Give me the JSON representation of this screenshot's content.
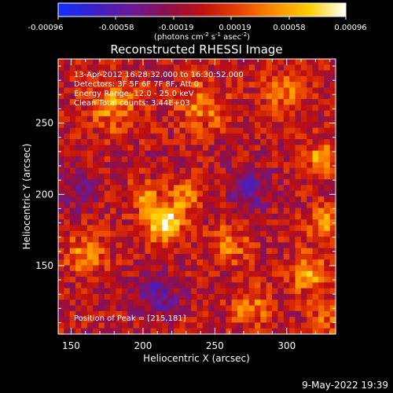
{
  "colorbar": {
    "ticks": [
      "-0.00096",
      "-0.00058",
      "-0.00019",
      "0.00019",
      "0.00058",
      "0.00096"
    ],
    "unit_prefix": "(photons cm",
    "unit_exp1": "-2",
    "unit_mid": " s",
    "unit_exp2": "-1",
    "unit_mid2": " asec",
    "unit_exp3": "-2",
    "unit_suffix": ")",
    "stops": [
      "#1030ff",
      "#3a20c8",
      "#6a1a9a",
      "#8a1050",
      "#c01010",
      "#e84000",
      "#ff8c00",
      "#ffd000",
      "#ffffff"
    ]
  },
  "chart_data": {
    "type": "heatmap",
    "title": "Reconstructed RHESSI Image",
    "xlabel": "Heliocentric X (arcsec)",
    "ylabel": "Heliocentric Y (arcsec)",
    "xlim": [
      141,
      334
    ],
    "ylim": [
      102,
      295
    ],
    "xticks": [
      150,
      200,
      250,
      300
    ],
    "yticks": [
      150,
      200,
      250
    ],
    "clim": [
      -0.00096,
      0.00096
    ],
    "annotations": [
      "13-Apr-2012 16:28:32.000 to 16:30:52.000",
      "Detectors: 3F 5F 6F 7F 8F, Att 0",
      "Energy Range: 12.0 - 25.0 keV",
      "Clean    Total counts: 3.44E+03"
    ],
    "peak_label": "Position of Peak = [215,181]",
    "peak": [
      215,
      181
    ],
    "sources": [
      {
        "x": 215,
        "y": 181,
        "amp": 0.00096,
        "sigma": 9
      },
      {
        "x": 200,
        "y": 200,
        "amp": 0.00045,
        "sigma": 7
      },
      {
        "x": 230,
        "y": 198,
        "amp": 0.0004,
        "sigma": 8
      },
      {
        "x": 180,
        "y": 262,
        "amp": 0.0005,
        "sigma": 12
      },
      {
        "x": 240,
        "y": 262,
        "amp": 0.00045,
        "sigma": 12
      },
      {
        "x": 300,
        "y": 272,
        "amp": 0.00045,
        "sigma": 10
      },
      {
        "x": 325,
        "y": 225,
        "amp": 0.0006,
        "sigma": 8
      },
      {
        "x": 315,
        "y": 145,
        "amp": 0.0006,
        "sigma": 9
      },
      {
        "x": 325,
        "y": 180,
        "amp": 0.0005,
        "sigma": 8
      },
      {
        "x": 160,
        "y": 158,
        "amp": 0.00045,
        "sigma": 10
      },
      {
        "x": 260,
        "y": 165,
        "amp": 0.0004,
        "sigma": 10
      },
      {
        "x": 275,
        "y": 120,
        "amp": 0.00045,
        "sigma": 9
      },
      {
        "x": 330,
        "y": 115,
        "amp": 0.0004,
        "sigma": 8
      },
      {
        "x": 210,
        "y": 130,
        "amp": -0.00045,
        "sigma": 12
      },
      {
        "x": 275,
        "y": 205,
        "amp": -0.0004,
        "sigma": 11
      },
      {
        "x": 155,
        "y": 205,
        "amp": -0.00035,
        "sigma": 10
      }
    ]
  },
  "footer": {
    "date": "9-May-2022 19:39"
  }
}
